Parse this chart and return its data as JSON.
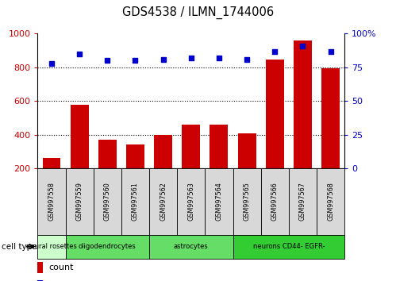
{
  "title": "GDS4538 / ILMN_1744006",
  "samples": [
    "GSM997558",
    "GSM997559",
    "GSM997560",
    "GSM997561",
    "GSM997562",
    "GSM997563",
    "GSM997564",
    "GSM997565",
    "GSM997566",
    "GSM997567",
    "GSM997568"
  ],
  "counts": [
    265,
    580,
    370,
    345,
    400,
    460,
    460,
    410,
    845,
    960,
    795
  ],
  "percentiles": [
    78,
    85,
    80,
    80,
    81,
    82,
    82,
    81,
    87,
    91,
    87
  ],
  "cell_types": [
    {
      "label": "neural rosettes",
      "start": 0,
      "end": 1,
      "color": "#ccffcc"
    },
    {
      "label": "oligodendrocytes",
      "start": 1,
      "end": 4,
      "color": "#66dd66"
    },
    {
      "label": "astrocytes",
      "start": 4,
      "end": 7,
      "color": "#66dd66"
    },
    {
      "label": "neurons CD44- EGFR-",
      "start": 7,
      "end": 11,
      "color": "#33cc33"
    }
  ],
  "ylim_left": [
    200,
    1000
  ],
  "ylim_right": [
    0,
    100
  ],
  "bar_color": "#cc0000",
  "dot_color": "#0000cc",
  "grid_color": "#000000",
  "plot_bg": "#ffffff",
  "left_yticks": [
    200,
    400,
    600,
    800,
    1000
  ],
  "right_yticks": [
    0,
    25,
    50,
    75,
    100
  ],
  "left_tick_labels": [
    "200",
    "400",
    "600",
    "800",
    "1000"
  ],
  "right_tick_labels": [
    "0",
    "25",
    "50",
    "75",
    "100%"
  ],
  "sample_box_color": "#d8d8d8",
  "legend_count_color": "#cc0000",
  "legend_percentile_color": "#0000cc",
  "grid_lines": [
    400,
    600,
    800
  ]
}
